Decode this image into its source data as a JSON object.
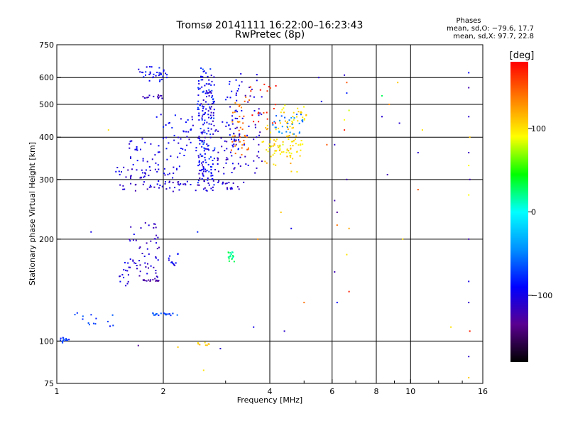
{
  "header": {
    "title": "Tromsø 20141111 16:22:00–16:23:43",
    "subtitle": "RwPretec (8p)"
  },
  "phase_stats": {
    "heading": "Phases",
    "line_o": "mean, sd,O: −79.6, 17.7",
    "line_x": "mean, sd,X:  97.7, 22.8"
  },
  "chart_data": {
    "type": "scatter",
    "xlabel": "Frequency [MHz]",
    "ylabel": "Stationary phase Virtual Height [km]",
    "x_scale": "log",
    "y_scale": "log",
    "xlim": [
      1,
      16
    ],
    "ylim": [
      75,
      750
    ],
    "x_ticks": [
      {
        "value": 1,
        "label": "1"
      },
      {
        "value": 2,
        "label": "2"
      },
      {
        "value": 4,
        "label": "4"
      },
      {
        "value": 6,
        "label": "6"
      },
      {
        "value": 8,
        "label": "8"
      },
      {
        "value": 10,
        "label": "10"
      },
      {
        "value": 16,
        "label": "16"
      }
    ],
    "x_minor_ticks": [
      3,
      5,
      7,
      9,
      12,
      14
    ],
    "x_gridlines": [
      2,
      4,
      6,
      8,
      10
    ],
    "y_ticks": [
      {
        "value": 75,
        "label": "75"
      },
      {
        "value": 100,
        "label": "100"
      },
      {
        "value": 200,
        "label": "200"
      },
      {
        "value": 300,
        "label": "300"
      },
      {
        "value": 400,
        "label": "400"
      },
      {
        "value": 500,
        "label": "500"
      },
      {
        "value": 600,
        "label": "600"
      },
      {
        "value": 750,
        "label": "750"
      }
    ],
    "y_gridlines": [
      100,
      200,
      300,
      400,
      500,
      600
    ],
    "grid": true,
    "colorbar": {
      "label": "[deg]",
      "range": [
        -180,
        180
      ],
      "ticks": [
        {
          "value": 100,
          "label": "100"
        },
        {
          "value": 0,
          "label": "0"
        },
        {
          "value": -100,
          "label": "−100"
        }
      ],
      "colors": [
        "#000000",
        "#5a0090",
        "#0000ff",
        "#0090ff",
        "#00ffff",
        "#00ff00",
        "#ffff00",
        "#ff8000",
        "#ff0000"
      ]
    },
    "series": [
      {
        "traces": [
          {
            "x": [
              1.5,
              3.4
            ],
            "y": [
              275,
              300
            ],
            "phase": -110,
            "n": 70,
            "spread": 8
          },
          {
            "x": [
              1.45,
              2.2
            ],
            "y": [
              300,
              330
            ],
            "phase": -105,
            "n": 40,
            "spread": 10
          },
          {
            "x": [
              1.6,
              2.4
            ],
            "y": [
              320,
              400
            ],
            "phase": -100,
            "n": 40,
            "spread": 10
          },
          {
            "x": [
              1.9,
              2.6
            ],
            "y": [
              350,
              480
            ],
            "phase": -95,
            "n": 35,
            "spread": 12
          },
          {
            "x": [
              2.5,
              2.8
            ],
            "y": [
              280,
              650
            ],
            "phase": -105,
            "n": 110,
            "spread": 6
          },
          {
            "x": [
              2.5,
              2.8
            ],
            "y": [
              280,
              650
            ],
            "phase": -80,
            "n": 90,
            "spread": 6
          },
          {
            "x": [
              2.8,
              3.3
            ],
            "y": [
              300,
              450
            ],
            "phase": -110,
            "n": 40,
            "spread": 8
          },
          {
            "x": [
              3.0,
              3.3
            ],
            "y": [
              330,
              620
            ],
            "phase": -95,
            "n": 40,
            "spread": 6
          },
          {
            "x": [
              3.1,
              3.5
            ],
            "y": [
              350,
              560
            ],
            "phase": 140,
            "n": 40,
            "spread": 6
          },
          {
            "x": [
              3.3,
              3.8
            ],
            "y": [
              300,
              640
            ],
            "phase": -110,
            "n": 40,
            "spread": 6
          },
          {
            "x": [
              3.5,
              4.2
            ],
            "y": [
              420,
              600
            ],
            "phase": 170,
            "n": 20,
            "spread": 6
          },
          {
            "x": [
              3.8,
              4.8
            ],
            "y": [
              305,
              450
            ],
            "phase": 110,
            "n": 55,
            "spread": 8
          },
          {
            "x": [
              3.9,
              5.0
            ],
            "y": [
              340,
              400
            ],
            "phase": 95,
            "n": 35,
            "spread": 8
          },
          {
            "x": [
              4.0,
              5.0
            ],
            "y": [
              400,
              470
            ],
            "phase": -50,
            "n": 30,
            "spread": 8
          },
          {
            "x": [
              4.3,
              5.1
            ],
            "y": [
              430,
              500
            ],
            "phase": 100,
            "n": 25,
            "spread": 8
          },
          {
            "x": [
              1.7,
              2.05
            ],
            "y": [
              580,
              650
            ],
            "phase": -90,
            "n": 35,
            "spread": 5
          },
          {
            "x": [
              1.75,
              2.0
            ],
            "y": [
              520,
              535
            ],
            "phase": -120,
            "n": 15,
            "spread": 3
          },
          {
            "x": [
              1.6,
              1.95
            ],
            "y": [
              150,
              230
            ],
            "phase": -110,
            "n": 55,
            "spread": 10
          },
          {
            "x": [
              1.5,
              1.6
            ],
            "y": [
              140,
              180
            ],
            "phase": -105,
            "n": 15,
            "spread": 8
          },
          {
            "x": [
              1.75,
              1.95
            ],
            "y": [
              150,
              152
            ],
            "phase": -125,
            "n": 15,
            "spread": 2
          },
          {
            "x": [
              1.85,
              2.2
            ],
            "y": [
              119,
              121
            ],
            "phase": -70,
            "n": 20,
            "spread": 2
          },
          {
            "x": [
              2.05,
              2.2
            ],
            "y": [
              165,
              185
            ],
            "phase": -95,
            "n": 12,
            "spread": 5
          },
          {
            "x": [
              3.05,
              3.2
            ],
            "y": [
              170,
              185
            ],
            "phase": 20,
            "n": 18,
            "spread": 6
          },
          {
            "x": [
              1.02,
              1.1
            ],
            "y": [
              98,
              103
            ],
            "phase": -75,
            "n": 14,
            "spread": 4
          },
          {
            "x": [
              1.08,
              1.45
            ],
            "y": [
              110,
              122
            ],
            "phase": -75,
            "n": 14,
            "spread": 6
          },
          {
            "x": [
              2.5,
              2.7
            ],
            "y": [
              97,
              100
            ],
            "phase": 110,
            "n": 8,
            "spread": 4
          }
        ]
      }
    ],
    "sparse_points": [
      {
        "x": 6.5,
        "y": 610,
        "phase": -110
      },
      {
        "x": 6.6,
        "y": 580,
        "phase": 150
      },
      {
        "x": 6.6,
        "y": 540,
        "phase": -80
      },
      {
        "x": 6.5,
        "y": 420,
        "phase": 170
      },
      {
        "x": 6.5,
        "y": 450,
        "phase": 90
      },
      {
        "x": 6.6,
        "y": 300,
        "phase": -120
      },
      {
        "x": 6.7,
        "y": 480,
        "phase": 80
      },
      {
        "x": 6.1,
        "y": 380,
        "phase": -110
      },
      {
        "x": 6.1,
        "y": 260,
        "phase": -120
      },
      {
        "x": 6.2,
        "y": 240,
        "phase": -130
      },
      {
        "x": 6.2,
        "y": 220,
        "phase": 140
      },
      {
        "x": 6.1,
        "y": 160,
        "phase": -120
      },
      {
        "x": 6.2,
        "y": 130,
        "phase": -90
      },
      {
        "x": 6.6,
        "y": 180,
        "phase": 100
      },
      {
        "x": 6.7,
        "y": 215,
        "phase": 120
      },
      {
        "x": 6.7,
        "y": 140,
        "phase": 170
      },
      {
        "x": 5.5,
        "y": 600,
        "phase": -110
      },
      {
        "x": 5.8,
        "y": 380,
        "phase": 150
      },
      {
        "x": 5.6,
        "y": 510,
        "phase": -100
      },
      {
        "x": 8.3,
        "y": 530,
        "phase": 30
      },
      {
        "x": 8.3,
        "y": 460,
        "phase": -110
      },
      {
        "x": 8.6,
        "y": 310,
        "phase": -120
      },
      {
        "x": 8.7,
        "y": 500,
        "phase": 130
      },
      {
        "x": 9.2,
        "y": 580,
        "phase": 110
      },
      {
        "x": 9.3,
        "y": 440,
        "phase": -110
      },
      {
        "x": 9.5,
        "y": 200,
        "phase": 100
      },
      {
        "x": 10.5,
        "y": 360,
        "phase": -110
      },
      {
        "x": 10.5,
        "y": 280,
        "phase": 150
      },
      {
        "x": 10.8,
        "y": 420,
        "phase": 100
      },
      {
        "x": 13.0,
        "y": 110,
        "phase": 100
      },
      {
        "x": 14.6,
        "y": 620,
        "phase": -90
      },
      {
        "x": 14.6,
        "y": 560,
        "phase": -120
      },
      {
        "x": 14.6,
        "y": 460,
        "phase": -110
      },
      {
        "x": 14.7,
        "y": 400,
        "phase": 110
      },
      {
        "x": 14.6,
        "y": 360,
        "phase": -115
      },
      {
        "x": 14.6,
        "y": 330,
        "phase": 90
      },
      {
        "x": 14.7,
        "y": 300,
        "phase": -120
      },
      {
        "x": 14.6,
        "y": 270,
        "phase": 90
      },
      {
        "x": 14.6,
        "y": 200,
        "phase": -120
      },
      {
        "x": 14.6,
        "y": 150,
        "phase": -100
      },
      {
        "x": 14.6,
        "y": 130,
        "phase": -110
      },
      {
        "x": 14.7,
        "y": 107,
        "phase": 170
      },
      {
        "x": 14.6,
        "y": 90,
        "phase": -110
      },
      {
        "x": 14.6,
        "y": 78,
        "phase": 110
      },
      {
        "x": 4.4,
        "y": 107,
        "phase": -110
      },
      {
        "x": 4.6,
        "y": 215,
        "phase": -100
      },
      {
        "x": 4.3,
        "y": 240,
        "phase": 110
      },
      {
        "x": 5.0,
        "y": 130,
        "phase": 140
      },
      {
        "x": 3.7,
        "y": 200,
        "phase": 130
      },
      {
        "x": 3.6,
        "y": 110,
        "phase": -100
      },
      {
        "x": 2.9,
        "y": 95,
        "phase": -110
      },
      {
        "x": 2.2,
        "y": 96,
        "phase": 110
      },
      {
        "x": 1.7,
        "y": 97,
        "phase": -130
      },
      {
        "x": 2.6,
        "y": 82,
        "phase": 100
      },
      {
        "x": 1.25,
        "y": 210,
        "phase": -100
      },
      {
        "x": 1.4,
        "y": 420,
        "phase": 100
      },
      {
        "x": 2.5,
        "y": 210,
        "phase": -80
      }
    ]
  }
}
